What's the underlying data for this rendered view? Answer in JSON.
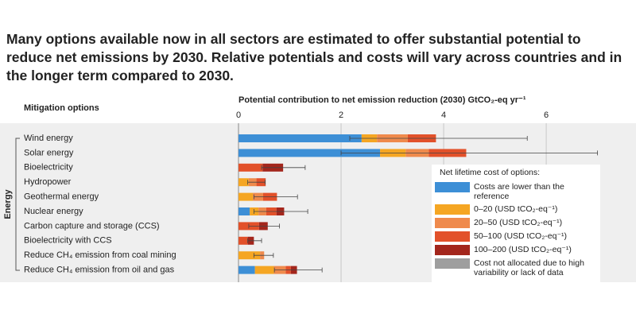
{
  "chart_data": {
    "type": "stacked-bar-horizontal",
    "title": "Many options available now in all sectors are estimated to offer substantial potential to reduce net emissions by 2030. Relative potentials and costs will vary across countries and in the longer term compared to 2030.",
    "category_axis_label": "Mitigation options",
    "x_axis_label": "Potential contribution to net emission reduction (2030) GtCO₂-eq yr⁻¹",
    "group_label": "Energy",
    "legend_title": "Net lifetime cost of options:",
    "categories": [
      "Wind energy",
      "Solar energy",
      "Bioelectricity",
      "Hydropower",
      "Geothermal energy",
      "Nuclear energy",
      "Carbon capture and storage (CCS)",
      "Bioelectricity with CCS",
      "Reduce CH₄ emission from coal mining",
      "Reduce CH₄ emission from oil and gas"
    ],
    "series": [
      {
        "name": "Costs are lower than the reference",
        "color": "#3d8fd6",
        "values": [
          2.4,
          2.76,
          0,
          0,
          0,
          0.22,
          0,
          0,
          0,
          0.32
        ]
      },
      {
        "name": "0–20 (USD tCO₂-eq⁻¹)",
        "color": "#f5a623",
        "values": [
          0.3,
          0.5,
          0,
          0.2,
          0.28,
          0.17,
          0,
          0,
          0.42,
          0.37
        ]
      },
      {
        "name": "20–50 (USD tCO₂-eq⁻¹)",
        "color": "#ef8a4c",
        "values": [
          0.6,
          0.45,
          0,
          0.15,
          0.2,
          0.15,
          0,
          0,
          0.08,
          0.23
        ]
      },
      {
        "name": "50–100 (USD tCO₂-eq⁻¹)",
        "color": "#e2512a",
        "values": [
          0.55,
          0.73,
          0.47,
          0.18,
          0.27,
          0.2,
          0.4,
          0.18,
          0,
          0.1
        ]
      },
      {
        "name": "100–200 (USD tCO₂-eq⁻¹)",
        "color": "#a3261c",
        "values": [
          0,
          0,
          0.4,
          0,
          0,
          0.15,
          0.17,
          0.12,
          0,
          0.12
        ]
      },
      {
        "name": "Cost not allocated due to high variability or lack of data",
        "color": "#9e9e9e",
        "values": [
          0,
          0,
          0,
          0,
          0,
          0,
          0,
          0,
          0,
          0
        ]
      }
    ],
    "error_low": [
      2.17,
      2.0,
      0.45,
      0.18,
      0.3,
      0.3,
      0.2,
      0.18,
      0.3,
      0.7
    ],
    "error_high": [
      5.63,
      7.0,
      1.3,
      0.52,
      1.15,
      1.35,
      0.8,
      0.45,
      0.68,
      1.63
    ],
    "xlim": [
      0,
      7.75
    ],
    "xticks": [
      0,
      2,
      4,
      6
    ],
    "grid": true
  }
}
